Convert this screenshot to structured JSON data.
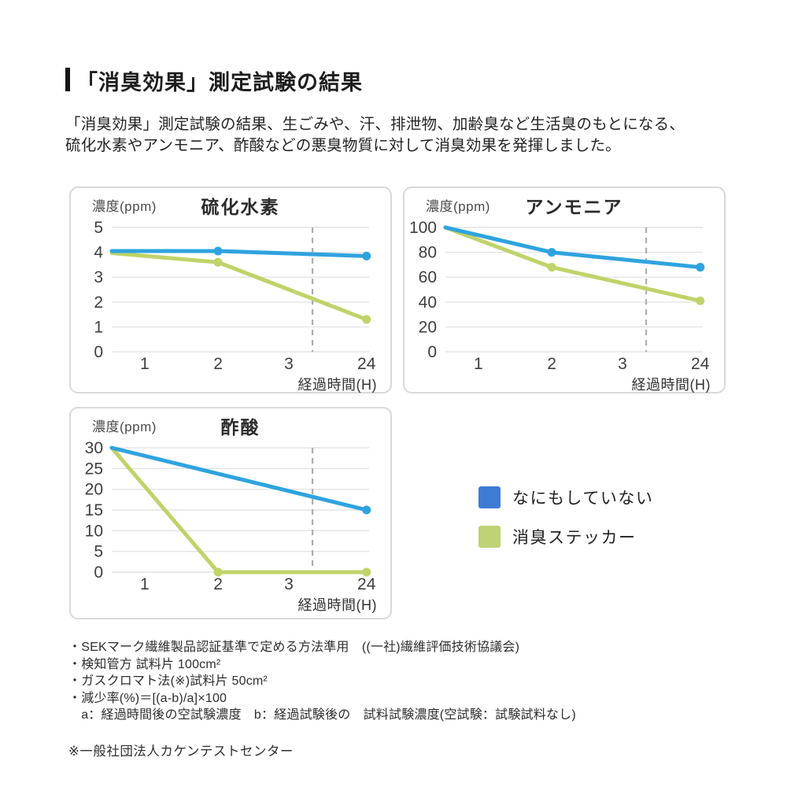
{
  "header": {
    "title": "「消臭効果」測定試験の結果",
    "description": "「消臭効果」測定試験の結果、生ごみや、汗、排泄物、加齢臭など生活臭のもとになる、\n硫化水素やアンモニア、酢酸などの悪臭物質に対して消臭効果を発揮しました。"
  },
  "colors": {
    "line_blue": "#2FA3DF",
    "line_green": "#BFD369",
    "legend_blue": "#3E7BD3",
    "legend_green": "#BFD276",
    "grid": "#E4E4E4",
    "dashed_guide": "#ADADAD",
    "tick_text": "#3F3F3F"
  },
  "legend": {
    "position": "right of acetic-acid chart",
    "items": [
      {
        "label": "なにもしていない",
        "color": "#3E7BD3"
      },
      {
        "label": "消臭ステッカー",
        "color": "#BFD276"
      }
    ]
  },
  "chart_data": [
    {
      "type": "line",
      "title": "硫化水素",
      "ylabel": "濃度(ppm)",
      "xlabel": "経過時間(H)",
      "categories": [
        "1",
        "2",
        "3",
        "24"
      ],
      "yticks": [
        0,
        1,
        2,
        3,
        4,
        5
      ],
      "ylim": [
        0,
        5
      ],
      "grid": true,
      "dashed_guide": true,
      "series": [
        {
          "name": "なにもしていない",
          "color": "#2FA3DF",
          "points": [
            [
              0,
              4.05
            ],
            [
              2,
              4.05
            ],
            [
              24,
              3.85
            ]
          ],
          "dots": [
            2,
            24
          ]
        },
        {
          "name": "消臭ステッカー",
          "color": "#BFD369",
          "points": [
            [
              0,
              3.97
            ],
            [
              2,
              3.6
            ],
            [
              24,
              1.3
            ]
          ],
          "dots": [
            2,
            24
          ]
        }
      ]
    },
    {
      "type": "line",
      "title": "アンモニア",
      "ylabel": "濃度(ppm)",
      "xlabel": "経過時間(H)",
      "categories": [
        "1",
        "2",
        "3",
        "24"
      ],
      "yticks": [
        0,
        20,
        40,
        60,
        80,
        100
      ],
      "ylim": [
        0,
        100
      ],
      "grid": true,
      "dashed_guide": true,
      "series": [
        {
          "name": "なにもしていない",
          "color": "#2FA3DF",
          "points": [
            [
              0,
              100
            ],
            [
              2,
              80
            ],
            [
              24,
              68
            ]
          ],
          "dots": [
            2,
            24
          ]
        },
        {
          "name": "消臭ステッカー",
          "color": "#BFD369",
          "points": [
            [
              0,
              100
            ],
            [
              2,
              68
            ],
            [
              24,
              41
            ]
          ],
          "dots": [
            2,
            24
          ]
        }
      ]
    },
    {
      "type": "line",
      "title": "酢酸",
      "ylabel": "濃度(ppm)",
      "xlabel": "経過時間(H)",
      "categories": [
        "1",
        "2",
        "3",
        "24"
      ],
      "yticks": [
        0,
        5,
        10,
        15,
        20,
        25,
        30
      ],
      "ylim": [
        0,
        30
      ],
      "grid": true,
      "dashed_guide": true,
      "series": [
        {
          "name": "なにもしていない",
          "color": "#2FA3DF",
          "points": [
            [
              0,
              30
            ],
            [
              24,
              15
            ]
          ],
          "dots": [
            24
          ]
        },
        {
          "name": "消臭ステッカー",
          "color": "#BFD369",
          "points": [
            [
              0,
              30
            ],
            [
              2,
              0
            ],
            [
              24,
              0
            ]
          ],
          "dots": [
            2,
            24
          ]
        }
      ]
    }
  ],
  "footnotes": {
    "lines": [
      "・SEKマーク繊維製品認証基準で定める方法準用　((一社)繊維評価技術協議会)",
      "・検知管方 試料片 100cm²",
      "・ガスクロマト法(※)試料片 50cm²",
      "・減少率(%)＝[(a-b)/a]×100",
      "　a：経過時間後の空試験濃度　b：経過試験後の　試料試験濃度(空試験：試験試料なし)"
    ],
    "source": "※一般社団法人カケンテストセンター"
  }
}
